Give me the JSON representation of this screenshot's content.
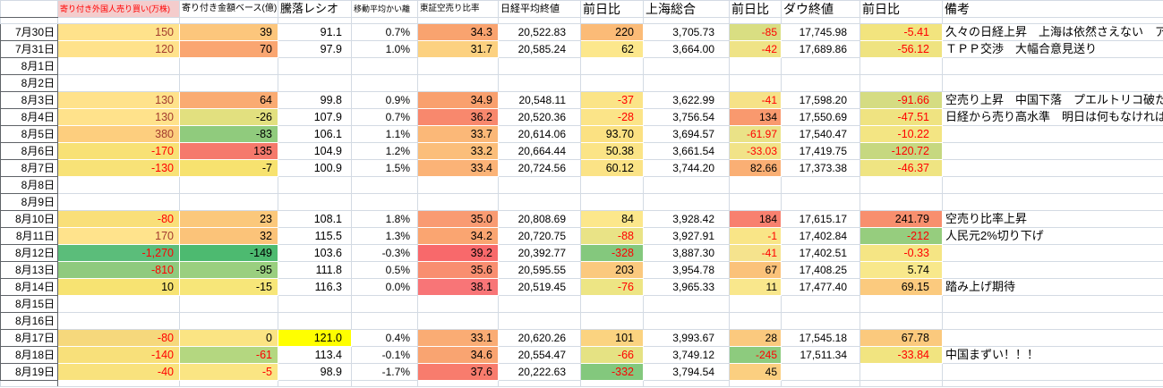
{
  "app": "spreadsheet-market-log",
  "colors": {
    "negative_text": "#FF0000",
    "flagged_positive_text": "#A33B2E",
    "header_foreign_bg": "#F4CCCC",
    "header_foreign_text": "#FF0000",
    "highlight_yellow": "#FFFF00",
    "gridline": "#D3DAE3",
    "date_border": "#5F6368"
  },
  "table": {
    "headers": [
      {
        "key": "date",
        "label": "",
        "cls": "h-big"
      },
      {
        "key": "foreign",
        "label": "寄り付き外国人売り買い(万株)",
        "cls": "h-foreign"
      },
      {
        "key": "amount",
        "label": "寄り付き金額ベース(億)",
        "cls": "h-amount"
      },
      {
        "key": "ratio",
        "label": "騰落レシオ",
        "cls": "h-ratio"
      },
      {
        "key": "ma",
        "label": "移動平均かい離",
        "cls": "h-ma"
      },
      {
        "key": "short",
        "label": "東証空売り比率",
        "cls": "h-short"
      },
      {
        "key": "nikkei",
        "label": "日経平均終値",
        "cls": "h-nikkei"
      },
      {
        "key": "nikkei_chg",
        "label": "前日比",
        "cls": "h-big"
      },
      {
        "key": "shanghai",
        "label": "上海総合",
        "cls": "h-big"
      },
      {
        "key": "shanghai_chg",
        "label": "前日比",
        "cls": "h-big"
      },
      {
        "key": "dow",
        "label": "ダウ終値",
        "cls": "h-big"
      },
      {
        "key": "dow_chg",
        "label": "前日比",
        "cls": "h-big"
      },
      {
        "key": "remark",
        "label": "備考",
        "cls": "h-big"
      }
    ],
    "rows": [
      {
        "date": "7月30日",
        "cells": {
          "foreign": {
            "v": "150",
            "bg": "#FFE28B",
            "fg": "#A33B2E"
          },
          "amount": {
            "v": "39",
            "bg": "#FCC67C"
          },
          "ratio": {
            "v": "91.1"
          },
          "ma": {
            "v": "0.7%"
          },
          "short": {
            "v": "34.3",
            "bg": "#F9A36F"
          },
          "nikkei": {
            "v": "20,522.83"
          },
          "nikkei_chg": {
            "v": "220",
            "bg": "#FBBB77"
          },
          "shanghai": {
            "v": "3,705.73"
          },
          "shanghai_chg": {
            "v": "-85",
            "bg": "#D9DE82",
            "fg": "#FF0000"
          },
          "dow": {
            "v": "17,745.98"
          },
          "dow_chg": {
            "v": "-5.41",
            "bg": "#F2E47E",
            "fg": "#FF0000"
          },
          "remark": {
            "v": "久々の日経上昇　上海は依然さえない　アメリカ景気回復の流"
          }
        }
      },
      {
        "date": "7月31日",
        "cells": {
          "foreign": {
            "v": "120",
            "bg": "#FFE28B",
            "fg": "#A33B2E"
          },
          "amount": {
            "v": "70",
            "bg": "#FAA671"
          },
          "ratio": {
            "v": "97.9"
          },
          "ma": {
            "v": "1.0%"
          },
          "short": {
            "v": "31.7",
            "bg": "#FCD180"
          },
          "nikkei": {
            "v": "20,585.24"
          },
          "nikkei_chg": {
            "v": "62",
            "bg": "#FCE78C"
          },
          "shanghai": {
            "v": "3,664.00"
          },
          "shanghai_chg": {
            "v": "-42",
            "bg": "#EFE386",
            "fg": "#FF0000"
          },
          "dow": {
            "v": "17,689.86"
          },
          "dow_chg": {
            "v": "-56.12",
            "bg": "#EFE380",
            "fg": "#FF0000"
          },
          "remark": {
            "v": "ＴＰＰ交渉　大幅合意見送り"
          }
        }
      },
      {
        "date": "8月1日"
      },
      {
        "date": "8月2日"
      },
      {
        "date": "8月3日",
        "cells": {
          "foreign": {
            "v": "130",
            "bg": "#FFE28B",
            "fg": "#A33B2E"
          },
          "amount": {
            "v": "64",
            "bg": "#FAAB72"
          },
          "ratio": {
            "v": "99.8"
          },
          "ma": {
            "v": "0.9%"
          },
          "short": {
            "v": "34.9",
            "bg": "#F9A06E"
          },
          "nikkei": {
            "v": "20,548.11"
          },
          "nikkei_chg": {
            "v": "-37",
            "bg": "#FBE487",
            "fg": "#FF0000"
          },
          "shanghai": {
            "v": "3,622.99"
          },
          "shanghai_chg": {
            "v": "-41",
            "bg": "#F6E287",
            "fg": "#FF0000"
          },
          "dow": {
            "v": "17,598.20"
          },
          "dow_chg": {
            "v": "-91.66",
            "bg": "#D5DC82",
            "fg": "#FF0000"
          },
          "remark": {
            "v": "空売り上昇　中国下落　プエルトリコ破たん目"
          }
        }
      },
      {
        "date": "8月4日",
        "cells": {
          "foreign": {
            "v": "130",
            "bg": "#FFE28B",
            "fg": "#A33B2E"
          },
          "amount": {
            "v": "-26",
            "bg": "#E2E07F"
          },
          "ratio": {
            "v": "107.9"
          },
          "ma": {
            "v": "0.7%"
          },
          "short": {
            "v": "36.2",
            "bg": "#F8886D"
          },
          "nikkei": {
            "v": "20,520.36"
          },
          "nikkei_chg": {
            "v": "-28",
            "bg": "#FBE488",
            "fg": "#FF0000"
          },
          "shanghai": {
            "v": "3,756.54"
          },
          "shanghai_chg": {
            "v": "134",
            "bg": "#F9996E"
          },
          "dow": {
            "v": "17,550.69"
          },
          "dow_chg": {
            "v": "-47.51",
            "bg": "#EFE381",
            "fg": "#FF0000"
          },
          "remark": {
            "v": "日経から売り高水準　明日は何もなければ踏み"
          }
        }
      },
      {
        "date": "8月5日",
        "cells": {
          "foreign": {
            "v": "380",
            "bg": "#FDCE7E",
            "fg": "#A33B2E"
          },
          "amount": {
            "v": "-83",
            "bg": "#90CB7D"
          },
          "ratio": {
            "v": "106.1"
          },
          "ma": {
            "v": "1.1%"
          },
          "short": {
            "v": "33.7",
            "bg": "#FBB878"
          },
          "nikkei": {
            "v": "20,614.06"
          },
          "nikkei_chg": {
            "v": "93.70",
            "bg": "#FBE182"
          },
          "shanghai": {
            "v": "3,694.57"
          },
          "shanghai_chg": {
            "v": "-61.97",
            "bg": "#EAE287",
            "fg": "#FF0000"
          },
          "dow": {
            "v": "17,540.47"
          },
          "dow_chg": {
            "v": "-10.22",
            "bg": "#F3E583",
            "fg": "#FF0000"
          }
        }
      },
      {
        "date": "8月6日",
        "cells": {
          "foreign": {
            "v": "-170",
            "bg": "#F8E175",
            "fg": "#FF0000"
          },
          "amount": {
            "v": "135",
            "bg": "#F5796C"
          },
          "ratio": {
            "v": "104.9"
          },
          "ma": {
            "v": "1.2%"
          },
          "short": {
            "v": "33.2",
            "bg": "#FBBE7A"
          },
          "nikkei": {
            "v": "20,664.44"
          },
          "nikkei_chg": {
            "v": "50.38",
            "bg": "#FBE486"
          },
          "shanghai": {
            "v": "3,661.54"
          },
          "shanghai_chg": {
            "v": "-33.03",
            "bg": "#F1E388",
            "fg": "#FF0000"
          },
          "dow": {
            "v": "17,419.75"
          },
          "dow_chg": {
            "v": "-120.72",
            "bg": "#C6D880",
            "fg": "#FF0000"
          }
        }
      },
      {
        "date": "8月7日",
        "cells": {
          "foreign": {
            "v": "-130",
            "bg": "#F8E277",
            "fg": "#FF0000"
          },
          "amount": {
            "v": "-7",
            "bg": "#F7E26F"
          },
          "ratio": {
            "v": "100.9"
          },
          "ma": {
            "v": "1.5%"
          },
          "short": {
            "v": "33.4",
            "bg": "#FBB377"
          },
          "nikkei": {
            "v": "20,724.56"
          },
          "nikkei_chg": {
            "v": "60.12",
            "bg": "#FBE386"
          },
          "shanghai": {
            "v": "3,744.20"
          },
          "shanghai_chg": {
            "v": "82.66",
            "bg": "#FAAF74"
          },
          "dow": {
            "v": "17,373.38"
          },
          "dow_chg": {
            "v": "-46.37",
            "bg": "#EFE482",
            "fg": "#FF0000"
          }
        }
      },
      {
        "date": "8月8日"
      },
      {
        "date": "8月9日"
      },
      {
        "date": "8月10日",
        "cells": {
          "foreign": {
            "v": "-80",
            "bg": "#F9DF79",
            "fg": "#FF0000"
          },
          "amount": {
            "v": "23",
            "bg": "#FBC87B"
          },
          "ratio": {
            "v": "108.1"
          },
          "ma": {
            "v": "1.8%"
          },
          "short": {
            "v": "35.0",
            "bg": "#F99B72"
          },
          "nikkei": {
            "v": "20,808.69"
          },
          "nikkei_chg": {
            "v": "84",
            "bg": "#FCE78B"
          },
          "shanghai": {
            "v": "3,928.42"
          },
          "shanghai_chg": {
            "v": "184",
            "bg": "#F8806F"
          },
          "dow": {
            "v": "17,615.17"
          },
          "dow_chg": {
            "v": "241.79",
            "bg": "#F88F6E"
          },
          "remark": {
            "v": "空売り比率上昇"
          }
        }
      },
      {
        "date": "8月11日",
        "cells": {
          "foreign": {
            "v": "170",
            "bg": "#FFE38C",
            "fg": "#A33B2E"
          },
          "amount": {
            "v": "32",
            "bg": "#FBC379"
          },
          "ratio": {
            "v": "115.5"
          },
          "ma": {
            "v": "1.3%"
          },
          "short": {
            "v": "34.2",
            "bg": "#FAA571"
          },
          "nikkei": {
            "v": "20,720.75"
          },
          "nikkei_chg": {
            "v": "-88",
            "bg": "#E9E386",
            "fg": "#FF0000"
          },
          "shanghai": {
            "v": "3,927.91"
          },
          "shanghai_chg": {
            "v": "-1",
            "bg": "#F9E587",
            "fg": "#FF0000"
          },
          "dow": {
            "v": "17,402.84"
          },
          "dow_chg": {
            "v": "-212",
            "bg": "#96CD7E",
            "fg": "#FF0000"
          },
          "remark": {
            "v": "人民元2%切り下げ"
          }
        }
      },
      {
        "date": "8月12日",
        "cells": {
          "foreign": {
            "v": "-1,270",
            "bg": "#5BBD7A",
            "fg": "#FF0000"
          },
          "amount": {
            "v": "-149",
            "bg": "#4DBA70"
          },
          "ratio": {
            "v": "103.6"
          },
          "ma": {
            "v": "-0.3%"
          },
          "short": {
            "v": "39.2",
            "bg": "#F8696B"
          },
          "nikkei": {
            "v": "20,392.77"
          },
          "nikkei_chg": {
            "v": "-328",
            "bg": "#84C87D",
            "fg": "#FF0000"
          },
          "shanghai": {
            "v": "3,887.30"
          },
          "shanghai_chg": {
            "v": "-41",
            "bg": "#F5E38D",
            "fg": "#FF0000"
          },
          "dow": {
            "v": "17,402.51"
          },
          "dow_chg": {
            "v": "-0.33",
            "bg": "#F5E584",
            "fg": "#FF0000"
          }
        }
      },
      {
        "date": "8月13日",
        "cells": {
          "foreign": {
            "v": "-810",
            "bg": "#8FCA7E",
            "fg": "#FF0000"
          },
          "amount": {
            "v": "-95",
            "bg": "#9ACF7F"
          },
          "ratio": {
            "v": "111.8"
          },
          "ma": {
            "v": "0.5%"
          },
          "short": {
            "v": "35.6",
            "bg": "#F98E70"
          },
          "nikkei": {
            "v": "20,595.55"
          },
          "nikkei_chg": {
            "v": "203",
            "bg": "#FBC97E"
          },
          "shanghai": {
            "v": "3,954.78"
          },
          "shanghai_chg": {
            "v": "67",
            "bg": "#FBC27A"
          },
          "dow": {
            "v": "17,408.25"
          },
          "dow_chg": {
            "v": "5.74",
            "bg": "#F8E88B"
          }
        }
      },
      {
        "date": "8月14日",
        "cells": {
          "foreign": {
            "v": "10",
            "bg": "#F7E372"
          },
          "amount": {
            "v": "-15",
            "bg": "#F7E679"
          },
          "ratio": {
            "v": "116.3"
          },
          "ma": {
            "v": "0.0%"
          },
          "short": {
            "v": "38.1",
            "bg": "#F87577"
          },
          "nikkei": {
            "v": "20,519.45"
          },
          "nikkei_chg": {
            "v": "-76",
            "bg": "#EDE584",
            "fg": "#FF0000"
          },
          "shanghai": {
            "v": "3,965.33"
          },
          "shanghai_chg": {
            "v": "11",
            "bg": "#F9E78C"
          },
          "dow": {
            "v": "17,477.40"
          },
          "dow_chg": {
            "v": "69.15",
            "bg": "#FBCA7E"
          },
          "remark": {
            "v": "踏み上げ期待"
          }
        }
      },
      {
        "date": "8月15日"
      },
      {
        "date": "8月16日"
      },
      {
        "date": "8月17日",
        "cells": {
          "foreign": {
            "v": "-80",
            "bg": "#F6D87C",
            "fg": "#FF0000"
          },
          "amount": {
            "v": "0",
            "bg": "#FBE483"
          },
          "ratio": {
            "v": "121.0",
            "bg": "#FFFF00"
          },
          "ma": {
            "v": "0.4%"
          },
          "short": {
            "v": "33.1",
            "bg": "#FAAC74"
          },
          "nikkei": {
            "v": "20,620.26"
          },
          "nikkei_chg": {
            "v": "101",
            "bg": "#FBD380"
          },
          "shanghai": {
            "v": "3,993.67"
          },
          "shanghai_chg": {
            "v": "28",
            "bg": "#FBC97E"
          },
          "dow": {
            "v": "17,545.18"
          },
          "dow_chg": {
            "v": "67.78",
            "bg": "#FBC97D"
          }
        }
      },
      {
        "date": "8月18日",
        "cells": {
          "foreign": {
            "v": "-140",
            "bg": "#F8E07A",
            "fg": "#FF0000"
          },
          "amount": {
            "v": "-61",
            "bg": "#B4D780",
            "fg": "#FF0000"
          },
          "ratio": {
            "v": "113.4"
          },
          "ma": {
            "v": "-0.1%"
          },
          "short": {
            "v": "34.6",
            "bg": "#F9A471"
          },
          "nikkei": {
            "v": "20,554.47"
          },
          "nikkei_chg": {
            "v": "-66",
            "bg": "#E5E283",
            "fg": "#FF0000"
          },
          "shanghai": {
            "v": "3,749.12"
          },
          "shanghai_chg": {
            "v": "-245",
            "bg": "#8DCB7E",
            "fg": "#FF0000"
          },
          "dow": {
            "v": "17,511.34"
          },
          "dow_chg": {
            "v": "-33.84",
            "bg": "#F1E480",
            "fg": "#FF0000"
          },
          "remark": {
            "v": "中国まずい！！！"
          }
        }
      },
      {
        "date": "8月19日",
        "cells": {
          "foreign": {
            "v": "-40",
            "bg": "#F9E27D",
            "fg": "#FF0000"
          },
          "amount": {
            "v": "-5",
            "bg": "#FAE583",
            "fg": "#FF0000"
          },
          "ratio": {
            "v": "98.9"
          },
          "ma": {
            "v": "-1.7%"
          },
          "short": {
            "v": "37.6",
            "bg": "#F87C6D"
          },
          "nikkei": {
            "v": "20,222.63"
          },
          "nikkei_chg": {
            "v": "-332",
            "bg": "#83C87D",
            "fg": "#FF0000"
          },
          "shanghai": {
            "v": "3,794.54"
          },
          "shanghai_chg": {
            "v": "45",
            "bg": "#FBCF80"
          }
        }
      }
    ]
  }
}
